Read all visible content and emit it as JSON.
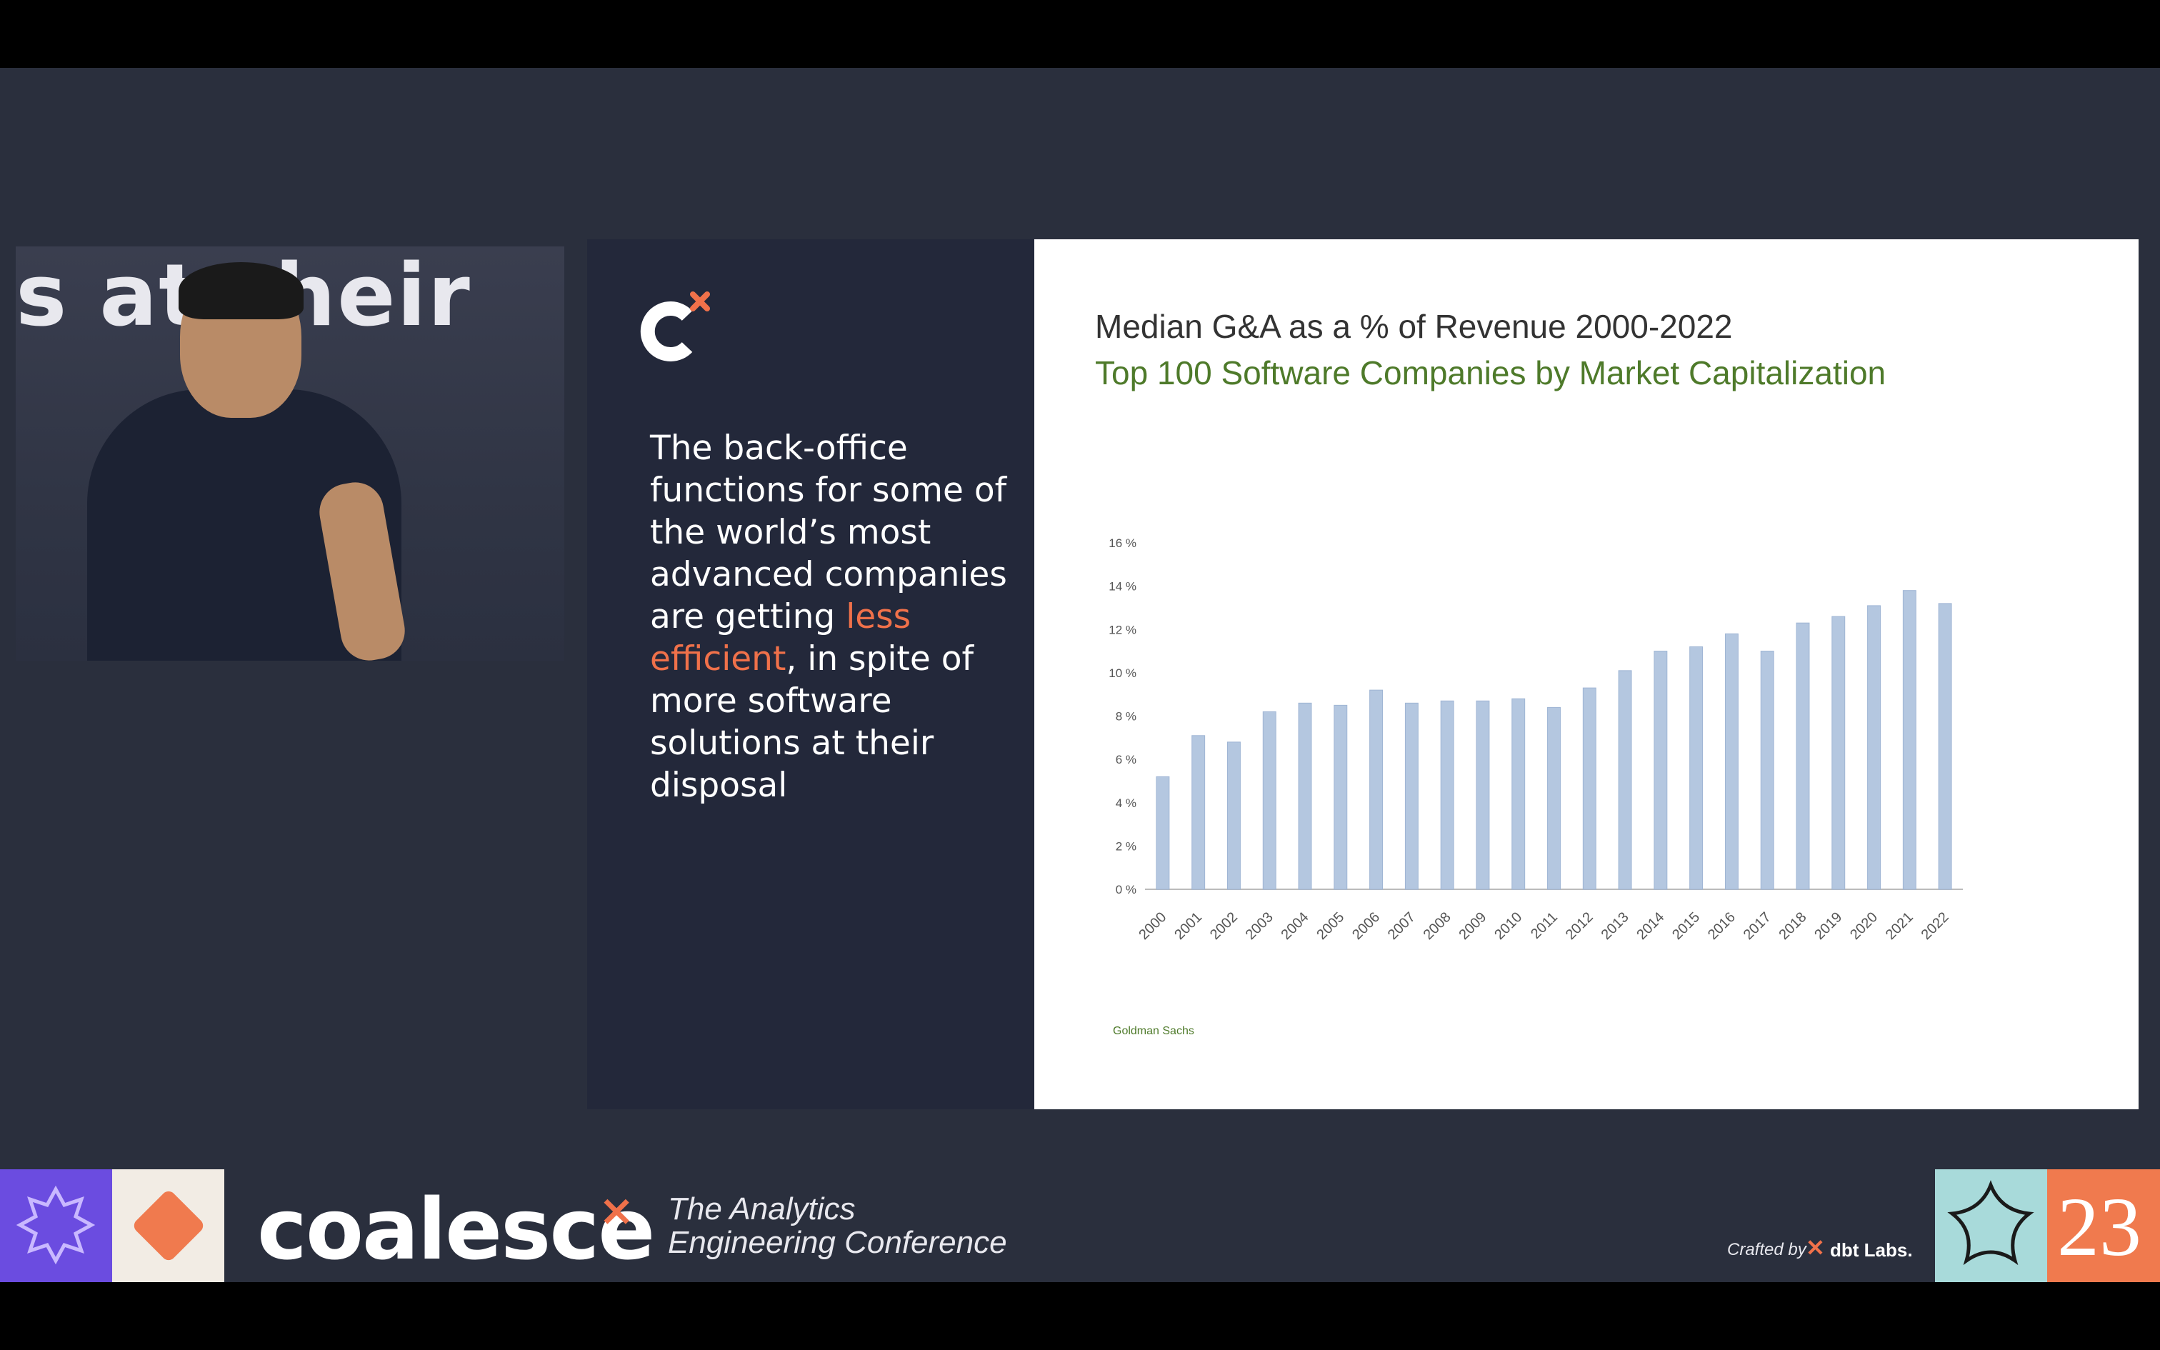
{
  "video": {
    "background_text": "s at their"
  },
  "slide": {
    "quote_parts": {
      "before": "The back-office functions for some of the world’s most advanced companies are getting ",
      "highlight": "less efficient",
      "after": ", in spite of more software solutions at their disposal"
    },
    "highlight_color": "#f0714a"
  },
  "chart_data": {
    "type": "bar",
    "title": "Median G&A as a % of Revenue 2000-2022",
    "subtitle": "Top 100 Software Companies by Market Capitalization",
    "categories": [
      "2000",
      "2001",
      "2002",
      "2003",
      "2004",
      "2005",
      "2006",
      "2007",
      "2008",
      "2009",
      "2010",
      "2011",
      "2012",
      "2013",
      "2014",
      "2015",
      "2016",
      "2017",
      "2018",
      "2019",
      "2020",
      "2021",
      "2022"
    ],
    "values": [
      5.2,
      7.1,
      6.8,
      8.2,
      8.6,
      8.5,
      9.2,
      8.6,
      8.7,
      8.7,
      8.8,
      8.4,
      9.3,
      10.1,
      11.0,
      11.2,
      11.8,
      11.0,
      12.3,
      12.6,
      13.1,
      13.8,
      13.2
    ],
    "yticks": [
      "0 %",
      "2 %",
      "4 %",
      "6 %",
      "8 %",
      "10 %",
      "12 %",
      "14 %",
      "16 %"
    ],
    "ylim": [
      0,
      16
    ],
    "xlabel": "",
    "ylabel": "",
    "bar_color": "#b4c7e0",
    "grid": false,
    "source": "Goldman Sachs"
  },
  "banner": {
    "brand": "coalesce",
    "tagline_line1": "The Analytics",
    "tagline_line2": "Engineering Conference",
    "crafted_by": "Crafted by",
    "dbt_labs": "dbt Labs.",
    "year": "23"
  }
}
